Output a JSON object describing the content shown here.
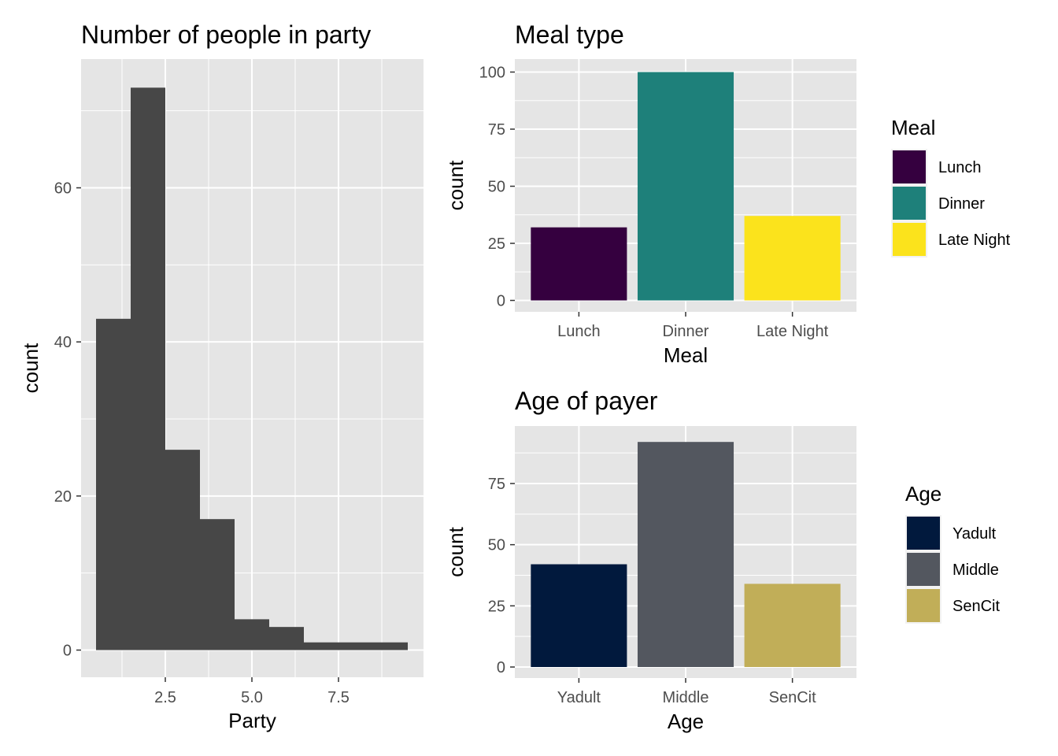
{
  "chart_data": [
    {
      "type": "bar",
      "title": "Number of people in party",
      "xlabel": "Party",
      "ylabel": "count",
      "x_ticks": [
        "2.5",
        "5.0",
        "7.5"
      ],
      "y_ticks": [
        "0",
        "20",
        "40",
        "60"
      ],
      "xlim": [
        0.5,
        9.5
      ],
      "ylim": [
        0,
        75
      ],
      "bins": [
        {
          "x0": 0.5,
          "x1": 1.5,
          "count": 43
        },
        {
          "x0": 1.5,
          "x1": 2.5,
          "count": 73
        },
        {
          "x0": 2.5,
          "x1": 3.5,
          "count": 26
        },
        {
          "x0": 3.5,
          "x1": 4.5,
          "count": 17
        },
        {
          "x0": 4.5,
          "x1": 5.5,
          "count": 4
        },
        {
          "x0": 5.5,
          "x1": 6.5,
          "count": 3
        },
        {
          "x0": 6.5,
          "x1": 7.5,
          "count": 1
        },
        {
          "x0": 7.5,
          "x1": 8.5,
          "count": 1
        },
        {
          "x0": 8.5,
          "x1": 9.5,
          "count": 1
        }
      ],
      "bar_color": "#474747",
      "grid": true
    },
    {
      "type": "bar",
      "title": "Meal type",
      "xlabel": "Meal",
      "ylabel": "count",
      "categories": [
        "Lunch",
        "Dinner",
        "Late Night"
      ],
      "values": [
        32,
        100,
        37
      ],
      "colors": [
        "#35003f",
        "#1e807a",
        "#fbe31c"
      ],
      "y_ticks": [
        "0",
        "25",
        "50",
        "75",
        "100"
      ],
      "ylim": [
        0,
        105
      ],
      "legend": {
        "title": "Meal",
        "entries": [
          "Lunch",
          "Dinner",
          "Late Night"
        ],
        "placement": "right"
      },
      "grid": true
    },
    {
      "type": "bar",
      "title": "Age of payer",
      "xlabel": "Age",
      "ylabel": "count",
      "categories": [
        "Yadult",
        "Middle",
        "SenCit"
      ],
      "values": [
        42,
        92,
        34
      ],
      "colors": [
        "#01193d",
        "#53575f",
        "#c1ae58"
      ],
      "y_ticks": [
        "0",
        "25",
        "50",
        "75"
      ],
      "ylim": [
        0,
        96.6
      ],
      "legend": {
        "title": "Age",
        "entries": [
          "Yadult",
          "Middle",
          "SenCit"
        ],
        "placement": "right"
      },
      "grid": true
    }
  ]
}
